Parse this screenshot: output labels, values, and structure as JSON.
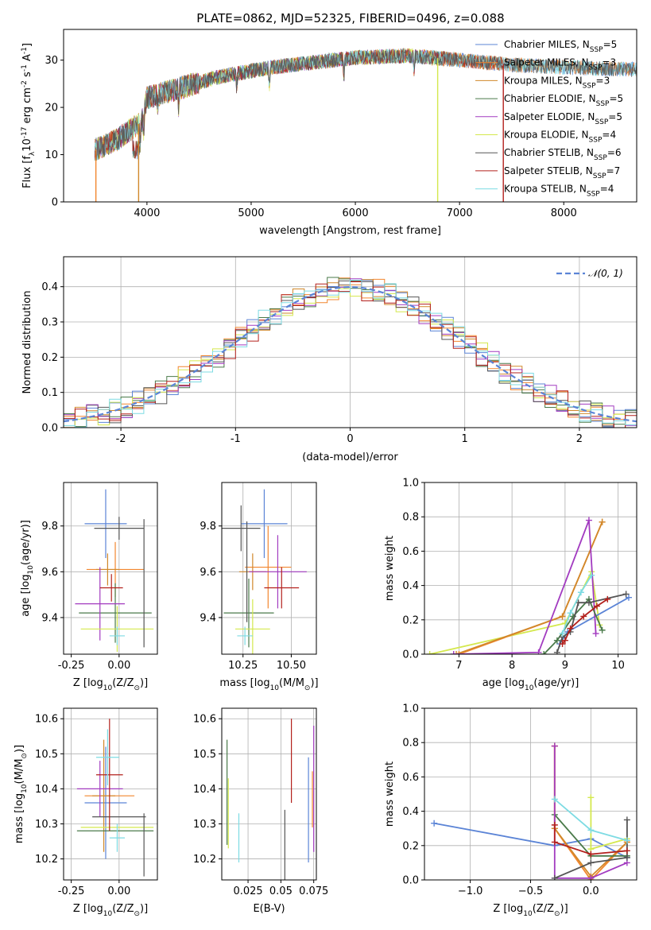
{
  "figure": {
    "title": "PLATE=0862, MJD=52325, FIBERID=0496, z=0.088"
  },
  "palette": {
    "chabrier_miles": "#5b84d6",
    "salpeter_miles": "#f2862e",
    "kroupa_miles": "#d1882a",
    "chabrier_elodie": "#4a7a4a",
    "salpeter_elodie": "#a23bc0",
    "kroupa_elodie": "#d4e84d",
    "chabrier_stelib": "#555555",
    "salpeter_stelib": "#b3201c",
    "kroupa_stelib": "#7ddbe3"
  },
  "chart_data": [
    {
      "id": "spectrum",
      "type": "line",
      "xlabel": "wavelength [Angstrom, rest frame]",
      "ylabel": "Flux [f_λ10^-17 erg cm^-2 s^-1 A^-1]",
      "xlim": [
        3200,
        8700
      ],
      "ylim": [
        0,
        36.5
      ],
      "xticks": [
        4000,
        5000,
        6000,
        7000,
        8000
      ],
      "yticks": [
        0,
        10,
        20,
        30
      ],
      "legend": [
        {
          "label": "Chabrier MILES, N",
          "sub": "SSP",
          "suffix": "=5",
          "key": "chabrier_miles"
        },
        {
          "label": "Salpeter MILES, N",
          "sub": "SSP",
          "suffix": "=3",
          "key": "salpeter_miles"
        },
        {
          "label": "Kroupa MILES, N",
          "sub": "SSP",
          "suffix": "=3",
          "key": "kroupa_miles"
        },
        {
          "label": "Chabrier ELODIE, N",
          "sub": "SSP",
          "suffix": "=5",
          "key": "chabrier_elodie"
        },
        {
          "label": "Salpeter ELODIE, N",
          "sub": "SSP",
          "suffix": "=5",
          "key": "salpeter_elodie"
        },
        {
          "label": "Kroupa ELODIE, N",
          "sub": "SSP",
          "suffix": "=4",
          "key": "kroupa_elodie"
        },
        {
          "label": "Chabrier STELIB, N",
          "sub": "SSP",
          "suffix": "=6",
          "key": "chabrier_stelib"
        },
        {
          "label": "Salpeter STELIB, N",
          "sub": "SSP",
          "suffix": "=7",
          "key": "salpeter_stelib"
        },
        {
          "label": "Kroupa STELIB, N",
          "sub": "SSP",
          "suffix": "=4",
          "key": "kroupa_stelib"
        }
      ],
      "continuum": [
        [
          3500,
          11
        ],
        [
          3700,
          13
        ],
        [
          3950,
          17
        ],
        [
          4000,
          22
        ],
        [
          4300,
          24
        ],
        [
          4700,
          26.5
        ],
        [
          5200,
          28.5
        ],
        [
          5600,
          29.5
        ],
        [
          6000,
          30.5
        ],
        [
          6500,
          31
        ],
        [
          7000,
          30
        ],
        [
          7500,
          29
        ],
        [
          8000,
          28.5
        ],
        [
          8700,
          28
        ]
      ],
      "drops": [
        {
          "x": 3510,
          "key": "salpeter_miles"
        },
        {
          "x": 3920,
          "key": "kroupa_miles"
        },
        {
          "x": 6790,
          "key": "kroupa_elodie"
        },
        {
          "x": 7420,
          "key": "salpeter_stelib"
        }
      ]
    },
    {
      "id": "residuals",
      "type": "histogram",
      "xlabel": "(data-model)/error",
      "ylabel": "Normed distribution",
      "xlim": [
        -2.5,
        2.5
      ],
      "ylim": [
        0,
        0.485
      ],
      "xticks": [
        -2,
        -1,
        0,
        1,
        2
      ],
      "yticks": [
        0.0,
        0.1,
        0.2,
        0.3,
        0.4
      ],
      "reference_label": "𝒩(0, 1)",
      "bins": 50,
      "bin_width": 0.1,
      "x_start": -2.5
    },
    {
      "id": "age_vs_Z",
      "type": "errorbar",
      "xlabel": "Z [log10(Z/Z_sun)]",
      "ylabel": "age [log10(age/yr)]",
      "xlim": [
        -0.29,
        0.2
      ],
      "ylim": [
        9.24,
        9.99
      ],
      "xticks": [
        -0.25,
        0.0
      ],
      "yticks": [
        9.4,
        9.6,
        9.8
      ],
      "points": [
        {
          "key": "chabrier_miles",
          "x": -0.07,
          "xerr": 0.11,
          "y": 9.81,
          "yerr": 0.15
        },
        {
          "key": "salpeter_miles",
          "x": -0.02,
          "xerr": 0.15,
          "y": 9.61,
          "yerr": 0.12
        },
        {
          "key": "kroupa_miles",
          "x": -0.06,
          "xerr": 0.06,
          "y": 9.61,
          "yerr": 0.07
        },
        {
          "key": "chabrier_elodie",
          "x": -0.02,
          "xerr": 0.19,
          "y": 9.42,
          "yerr": 0.13
        },
        {
          "key": "salpeter_elodie",
          "x": -0.1,
          "xerr": 0.13,
          "y": 9.46,
          "yerr": 0.16
        },
        {
          "key": "kroupa_elodie",
          "x": -0.01,
          "xerr": 0.19,
          "y": 9.35,
          "yerr": 0.1
        },
        {
          "key": "chabrier_stelib",
          "x": 0.0,
          "xerr": 0.13,
          "y": 9.79,
          "yerr": 0.05
        },
        {
          "key": "salpeter_stelib",
          "x": -0.04,
          "xerr": 0.06,
          "y": 9.53,
          "yerr": 0.06
        },
        {
          "key": "kroupa_stelib",
          "x": -0.01,
          "xerr": 0.04,
          "y": 9.32,
          "yerr": 0.04
        },
        {
          "key": "chabrier_stelib",
          "x": 0.13,
          "xerr": 0.0,
          "y": 9.55,
          "yerr": 0.28
        }
      ]
    },
    {
      "id": "age_vs_mass",
      "type": "errorbar",
      "xlabel": "mass [log10(M/M_sun)]",
      "ylabel": "",
      "xlim": [
        10.14,
        10.63
      ],
      "ylim": [
        9.24,
        9.99
      ],
      "xticks": [
        10.25,
        10.5
      ],
      "yticks": [
        9.4,
        9.6,
        9.8
      ],
      "points": [
        {
          "key": "chabrier_miles",
          "x": 10.36,
          "xerr": 0.12,
          "y": 9.81,
          "yerr": 0.15
        },
        {
          "key": "salpeter_miles",
          "x": 10.38,
          "xerr": 0.12,
          "y": 9.62,
          "yerr": 0.18
        },
        {
          "key": "kroupa_miles",
          "x": 10.3,
          "xerr": 0.07,
          "y": 9.6,
          "yerr": 0.08
        },
        {
          "key": "chabrier_elodie",
          "x": 10.28,
          "xerr": 0.13,
          "y": 9.42,
          "yerr": 0.15
        },
        {
          "key": "salpeter_elodie",
          "x": 10.43,
          "xerr": 0.15,
          "y": 9.6,
          "yerr": 0.16
        },
        {
          "key": "kroupa_elodie",
          "x": 10.3,
          "xerr": 0.09,
          "y": 9.35,
          "yerr": 0.13
        },
        {
          "key": "chabrier_stelib",
          "x": 10.24,
          "xerr": 0.1,
          "y": 9.79,
          "yerr": 0.1
        },
        {
          "key": "salpeter_stelib",
          "x": 10.45,
          "xerr": 0.09,
          "y": 9.53,
          "yerr": 0.09
        },
        {
          "key": "kroupa_stelib",
          "x": 10.26,
          "xerr": 0.04,
          "y": 9.32,
          "yerr": 0.04
        },
        {
          "key": "chabrier_stelib",
          "x": 10.27,
          "xerr": 0.0,
          "y": 9.6,
          "yerr": 0.22
        }
      ]
    },
    {
      "id": "weight_vs_age",
      "type": "line",
      "xlabel": "age [log10(age/yr)]",
      "ylabel": "mass weight",
      "xlim": [
        6.35,
        10.35
      ],
      "ylim": [
        0,
        1.0
      ],
      "xticks": [
        7,
        8,
        9,
        10
      ],
      "yticks": [
        0.0,
        0.2,
        0.4,
        0.6,
        0.8,
        1.0
      ],
      "series": [
        {
          "key": "kroupa_elodie",
          "points": [
            [
              6.45,
              0.0
            ],
            [
              9.0,
              0.18
            ],
            [
              9.5,
              0.48
            ],
            [
              9.65,
              0.17
            ]
          ]
        },
        {
          "key": "salpeter_miles",
          "points": [
            [
              7.0,
              0.0
            ],
            [
              8.95,
              0.22
            ],
            [
              9.7,
              0.77
            ]
          ]
        },
        {
          "key": "kroupa_miles",
          "points": [
            [
              6.95,
              0.0
            ],
            [
              8.95,
              0.22
            ],
            [
              9.7,
              0.77
            ]
          ]
        },
        {
          "key": "chabrier_miles",
          "points": [
            [
              8.9,
              0.06
            ],
            [
              9.05,
              0.13
            ],
            [
              10.2,
              0.33
            ]
          ]
        },
        {
          "key": "salpeter_elodie",
          "points": [
            [
              6.9,
              0.0
            ],
            [
              8.5,
              0.01
            ],
            [
              9.45,
              0.78
            ],
            [
              9.58,
              0.12
            ]
          ]
        },
        {
          "key": "chabrier_elodie",
          "points": [
            [
              8.6,
              0.0
            ],
            [
              8.85,
              0.08
            ],
            [
              9.15,
              0.22
            ],
            [
              9.45,
              0.32
            ],
            [
              9.7,
              0.14
            ]
          ]
        },
        {
          "key": "chabrier_stelib",
          "points": [
            [
              8.85,
              0.01
            ],
            [
              8.95,
              0.1
            ],
            [
              9.1,
              0.13
            ],
            [
              9.25,
              0.3
            ],
            [
              9.45,
              0.3
            ],
            [
              10.15,
              0.35
            ]
          ]
        },
        {
          "key": "salpeter_stelib",
          "points": [
            [
              8.95,
              0.06
            ],
            [
              9.0,
              0.08
            ],
            [
              9.1,
              0.15
            ],
            [
              9.35,
              0.22
            ],
            [
              9.6,
              0.28
            ],
            [
              9.8,
              0.32
            ]
          ]
        },
        {
          "key": "kroupa_stelib",
          "points": [
            [
              8.95,
              0.12
            ],
            [
              9.1,
              0.24
            ],
            [
              9.3,
              0.36
            ],
            [
              9.5,
              0.46
            ]
          ]
        }
      ]
    },
    {
      "id": "mass_vs_Z",
      "type": "errorbar",
      "xlabel": "Z [log10(Z/Z_sun)]",
      "ylabel": "mass [log10(M/M_sun)]",
      "xlim": [
        -0.29,
        0.2
      ],
      "ylim": [
        10.14,
        10.63
      ],
      "xticks": [
        -0.25,
        0.0
      ],
      "yticks": [
        10.2,
        10.3,
        10.4,
        10.5,
        10.6
      ],
      "points": [
        {
          "key": "chabrier_miles",
          "x": -0.07,
          "xerr": 0.11,
          "y": 10.36,
          "yerr": 0.16
        },
        {
          "key": "salpeter_miles",
          "x": -0.05,
          "xerr": 0.13,
          "y": 10.38,
          "yerr": 0.0
        },
        {
          "key": "kroupa_miles",
          "x": -0.08,
          "xerr": 0.06,
          "y": 10.38,
          "yerr": 0.16
        },
        {
          "key": "chabrier_elodie",
          "x": -0.02,
          "xerr": 0.2,
          "y": 10.28,
          "yerr": 0.0
        },
        {
          "key": "salpeter_elodie",
          "x": -0.1,
          "xerr": 0.12,
          "y": 10.4,
          "yerr": 0.08
        },
        {
          "key": "kroupa_elodie",
          "x": -0.01,
          "xerr": 0.19,
          "y": 10.29,
          "yerr": 0.0
        },
        {
          "key": "chabrier_stelib",
          "x": 0.0,
          "xerr": 0.14,
          "y": 10.32,
          "yerr": 0.0
        },
        {
          "key": "salpeter_stelib",
          "x": -0.05,
          "xerr": 0.07,
          "y": 10.44,
          "yerr": 0.16
        },
        {
          "key": "kroupa_stelib",
          "x": -0.01,
          "xerr": 0.04,
          "y": 10.26,
          "yerr": 0.04
        },
        {
          "key": "chabrier_stelib",
          "x": 0.13,
          "xerr": 0.0,
          "y": 10.24,
          "yerr": 0.09
        },
        {
          "key": "kroupa_stelib",
          "x": -0.06,
          "xerr": 0.06,
          "y": 10.49,
          "yerr": 0.08
        }
      ]
    },
    {
      "id": "mass_vs_ebv",
      "type": "errorbar",
      "xlabel": "E(B-V)",
      "ylabel": "",
      "xlim": [
        0.005,
        0.077
      ],
      "ylim": [
        10.14,
        10.63
      ],
      "xticks": [
        0.025,
        0.05,
        0.075
      ],
      "yticks": [
        10.2,
        10.3,
        10.4,
        10.5,
        10.6
      ],
      "points": [
        {
          "key": "chabrier_elodie",
          "x": 0.009,
          "xerr": 0.0,
          "y": 10.39,
          "yerr": 0.15
        },
        {
          "key": "kroupa_elodie",
          "x": 0.01,
          "xerr": 0.0,
          "y": 10.33,
          "yerr": 0.1
        },
        {
          "key": "kroupa_stelib",
          "x": 0.018,
          "xerr": 0.0,
          "y": 10.26,
          "yerr": 0.07
        },
        {
          "key": "chabrier_stelib",
          "x": 0.053,
          "xerr": 0.0,
          "y": 10.24,
          "yerr": 0.1
        },
        {
          "key": "salpeter_stelib",
          "x": 0.058,
          "xerr": 0.0,
          "y": 10.48,
          "yerr": 0.12
        },
        {
          "key": "chabrier_miles",
          "x": 0.071,
          "xerr": 0.0,
          "y": 10.34,
          "yerr": 0.15
        },
        {
          "key": "salpeter_miles",
          "x": 0.074,
          "xerr": 0.0,
          "y": 10.37,
          "yerr": 0.08
        },
        {
          "key": "salpeter_elodie",
          "x": 0.075,
          "xerr": 0.0,
          "y": 10.4,
          "yerr": 0.18
        }
      ]
    },
    {
      "id": "weight_vs_Z",
      "type": "line",
      "xlabel": "Z [log10(Z/Z_sun)]",
      "ylabel": "mass weight",
      "xlim": [
        -1.38,
        0.38
      ],
      "ylim": [
        0,
        1.0
      ],
      "xticks": [
        -1.0,
        -0.5,
        0.0
      ],
      "yticks": [
        0.0,
        0.2,
        0.4,
        0.6,
        0.8,
        1.0
      ],
      "series": [
        {
          "key": "chabrier_miles",
          "points": [
            [
              -1.3,
              0.33
            ],
            [
              -0.3,
              0.2
            ],
            [
              0.0,
              0.24
            ],
            [
              0.3,
              0.13
            ]
          ]
        },
        {
          "key": "salpeter_miles",
          "points": [
            [
              -0.3,
              0.78
            ],
            [
              -0.3,
              0.3
            ],
            [
              0.0,
              0.0
            ],
            [
              0.3,
              0.22
            ]
          ]
        },
        {
          "key": "kroupa_miles",
          "points": [
            [
              -0.3,
              0.78
            ],
            [
              -0.3,
              0.3
            ],
            [
              0.0,
              0.02
            ],
            [
              0.3,
              0.22
            ]
          ]
        },
        {
          "key": "chabrier_elodie",
          "points": [
            [
              -0.3,
              0.38
            ],
            [
              0.0,
              0.14
            ],
            [
              0.3,
              0.14
            ]
          ]
        },
        {
          "key": "salpeter_elodie",
          "points": [
            [
              -0.3,
              0.78
            ],
            [
              -0.3,
              0.01
            ],
            [
              0.0,
              0.01
            ],
            [
              0.3,
              0.1
            ]
          ]
        },
        {
          "key": "kroupa_elodie",
          "points": [
            [
              0.0,
              0.48
            ],
            [
              0.0,
              0.18
            ],
            [
              0.3,
              0.24
            ]
          ]
        },
        {
          "key": "chabrier_stelib",
          "points": [
            [
              -0.3,
              0.01
            ],
            [
              0.0,
              0.1
            ],
            [
              0.3,
              0.13
            ],
            [
              0.3,
              0.35
            ]
          ]
        },
        {
          "key": "salpeter_stelib",
          "points": [
            [
              -0.3,
              0.32
            ],
            [
              -0.3,
              0.22
            ],
            [
              0.0,
              0.15
            ],
            [
              0.3,
              0.17
            ]
          ]
        },
        {
          "key": "kroupa_stelib",
          "points": [
            [
              -0.3,
              0.47
            ],
            [
              0.0,
              0.29
            ],
            [
              0.3,
              0.23
            ]
          ]
        }
      ]
    }
  ]
}
